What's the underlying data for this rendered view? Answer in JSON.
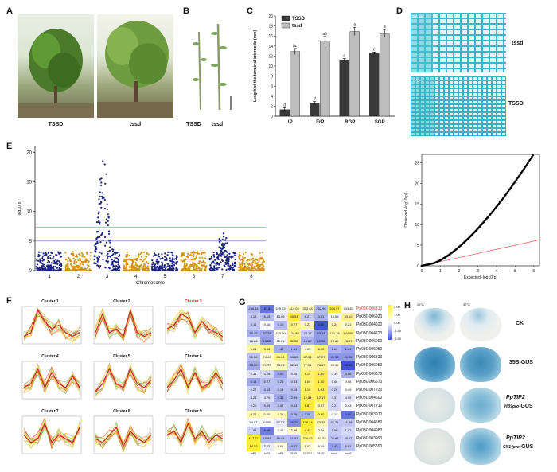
{
  "panels": {
    "A": "A",
    "B": "B",
    "C": "C",
    "D": "D",
    "E": "E",
    "F": "F",
    "G": "G",
    "H": "H"
  },
  "panelA": {
    "left_label": "TSSD",
    "right_label": "tssd"
  },
  "panelB": {
    "label_left": "TSSD",
    "label_right": "tssd"
  },
  "panelC": {
    "chart_data": {
      "type": "bar",
      "categories": [
        "IP",
        "FrP",
        "RGP",
        "SGP"
      ],
      "series": [
        {
          "name": "TSSD",
          "values": [
            1.3,
            2.6,
            11.2,
            12.5
          ],
          "errors": [
            0.4,
            0.3,
            0.3,
            0.3
          ],
          "letters": [
            "d",
            "d",
            "c",
            "c"
          ]
        },
        {
          "name": "tssd",
          "values": [
            12.9,
            15.0,
            16.9,
            16.5
          ],
          "errors": [
            0.6,
            0.9,
            0.8,
            0.8
          ],
          "letters": [
            "bc",
            "ab",
            "a",
            "a"
          ]
        }
      ],
      "ylabel": "Length of the terminal internode (mm)",
      "ylim": [
        0,
        20
      ],
      "yticks": [
        "0",
        "2",
        "4",
        "6",
        "8",
        "10",
        "12",
        "14",
        "16",
        "18",
        "20"
      ],
      "legend": "top-left",
      "colors": {
        "TSSD": "#3a3a3a",
        "tssd": "#bdbdbd"
      }
    }
  },
  "panelD": {
    "top_label": "tssd",
    "bottom_label": "TSSD",
    "bar_top": "100 μm",
    "bar_bottom": "100 μm"
  },
  "panelE": {
    "manhattan": {
      "chart_data": {
        "type": "scatter",
        "xlabel": "Chromosome",
        "ylabel": "-log10(p)",
        "chromosomes": [
          "1",
          "2",
          "3",
          "4",
          "5",
          "6",
          "7",
          "8"
        ],
        "yticks": [
          "0",
          "5",
          "10",
          "15",
          "20"
        ],
        "ylim": [
          0,
          21
        ],
        "thresholds": [
          7.3,
          5.0
        ],
        "peak_chromosome": "3",
        "peak_value": 19.8,
        "colors": {
          "odd": "#1a237e",
          "even": "#d4920b",
          "threshold_upper": "#d55",
          "threshold_lower": "#66c"
        }
      }
    },
    "qq": {
      "chart_data": {
        "type": "scatter",
        "xlabel": "Expected -log10(p)",
        "ylabel": "Observed -log10(p)",
        "xticks": [
          "0",
          "1",
          "2",
          "3",
          "4",
          "5",
          "6"
        ],
        "yticks": [
          "0",
          "5",
          "10",
          "15",
          "20",
          "25"
        ],
        "xlim": [
          0,
          6.3
        ],
        "ylim": [
          0,
          27
        ]
      }
    }
  },
  "panelF": {
    "clusters": [
      "Cluster 1",
      "Cluster 2",
      "Cluster 3",
      "Cluster 4",
      "Cluster 5",
      "Cluster 6",
      "Cluster 7",
      "Cluster 8",
      "Cluster 9"
    ],
    "highlight": "Cluster 3",
    "highlight_color": "#d32f2f"
  },
  "panelG": {
    "genes": [
      "Pp03G006310",
      "Pp03G006920",
      "Pp03G004520",
      "Pp03G004720",
      "Pp03G006000",
      "Pp03G006050",
      "Pp03G006320",
      "Pp03G006950",
      "Pp03G006370",
      "Pp03G006570",
      "Pp03G007230",
      "Pp03G004600",
      "Pp03G007210",
      "Pp03G003910",
      "Pp03G004580",
      "Pp03G004980",
      "Pp03G003990",
      "Pp03G005890"
    ],
    "highlight_gene": "Pp03G006310",
    "columns": [
      "InP1",
      "InP2",
      "InP3",
      "TSSD1",
      "TSSD2",
      "TSSD3",
      "tssd1",
      "tssd2"
    ],
    "values": [
      [
        "246.34",
        "163.84",
        "325.23",
        "414.03",
        "393.48",
        "252.56",
        "530.97",
        "343.40"
      ],
      [
        "8.15",
        "6.15",
        "13.06",
        "45.54",
        "8.21",
        "4.61",
        "15.59",
        "33.62"
      ],
      [
        "0.11",
        "0.16",
        "0.10",
        "0.27",
        "0.23",
        "0.00",
        "0.24",
        "0.21"
      ],
      [
        "60.45",
        "57.78",
        "102.90",
        "144.89",
        "74.17",
        "53.14",
        "131.75",
        "144.85"
      ],
      [
        "18.86",
        "13.20",
        "20.01",
        "30.02",
        "14.67",
        "12.95",
        "26.65",
        "28.47"
      ],
      [
        "5.01",
        "5.68",
        "1.42",
        "1.34",
        "4.09",
        "6.00",
        "1.64",
        "1.24"
      ],
      [
        "51.56",
        "74.49",
        "89.94",
        "50.55",
        "87.06",
        "87.27",
        "41.38",
        "41.59"
      ],
      [
        "55.30",
        "71.77",
        "73.53",
        "62.15",
        "77.39",
        "78.57",
        "69.95",
        "43.85"
      ],
      [
        "0.31",
        "0.26",
        "0.00",
        "0.28",
        "1.19",
        "1.30",
        "0.39",
        "0.06"
      ],
      [
        "0.15",
        "0.27",
        "0.25",
        "0.33",
        "1.09",
        "1.30",
        "0.46",
        "0.58"
      ],
      [
        "0.27",
        "0.15",
        "0.19",
        "0.19",
        "1.15",
        "1.23",
        "0.26",
        "0.49"
      ],
      [
        "4.23",
        "4.76",
        "2.33",
        "2.99",
        "12.84",
        "12.17",
        "4.37",
        "4.95"
      ],
      [
        "0.20",
        "0.09",
        "0.07",
        "0.04",
        "1.81",
        "0.97",
        "0.21",
        "0.43"
      ],
      [
        "0.22",
        "0.20",
        "0.21",
        "0.06",
        "0.06",
        "0.30",
        "0.15",
        "0.00"
      ],
      [
        "54.07",
        "54.86",
        "50.57",
        "26.75",
        "106.24",
        "73.35",
        "41.71",
        "41.48"
      ],
      [
        "1.84",
        "0.96",
        "2.45",
        "2.96",
        "4.43",
        "2.74",
        "1.80",
        "1.97"
      ],
      [
        "417.37",
        "19.89",
        "26.54",
        "21.97",
        "300.83",
        "197.28",
        "29.97",
        "49.47"
      ],
      [
        "14.50",
        "7.22",
        "8.61",
        "4.97",
        "9.02",
        "8.19",
        "4.45",
        "5.61"
      ]
    ],
    "scale": [
      "2.00",
      "1.00",
      "0.00",
      "-1.00",
      "-2.00"
    ],
    "scale_colors": {
      "high": "#ffeb3b",
      "mid": "#ffffff",
      "low": "#3f51d5"
    }
  },
  "panelH": {
    "temp_left": "26°C",
    "temp_right": "32°C",
    "rows": [
      {
        "label": "CK"
      },
      {
        "label": "35S-GUS"
      },
      {
        "label_main": "PpTIP2",
        "label_sub": "HB9pro",
        "label_suffix": "-GUS"
      },
      {
        "label_main": "PpTIP2",
        "label_sub": "CN14pro",
        "label_suffix": "-GUS"
      }
    ]
  }
}
